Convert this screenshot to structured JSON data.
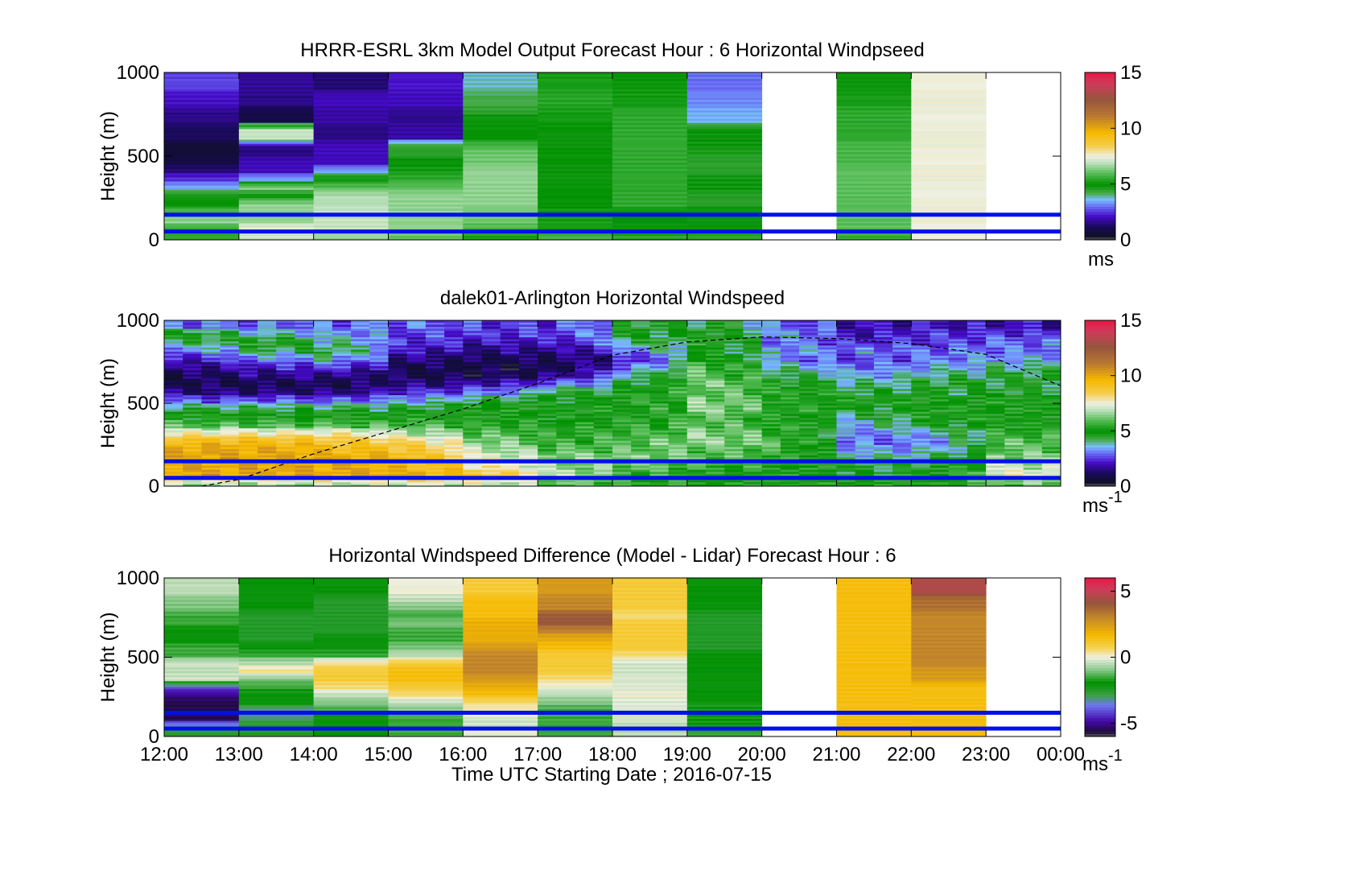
{
  "figure": {
    "xlabel": "Time UTC  Starting Date ; 2016-07-15",
    "xticks": [
      "12:00",
      "13:00",
      "14:00",
      "15:00",
      "16:00",
      "17:00",
      "18:00",
      "19:00",
      "20:00",
      "21:00",
      "22:00",
      "23:00",
      "00:00"
    ],
    "ylabel": "Height (m)",
    "yticks": [
      "0",
      "500",
      "1000"
    ]
  },
  "panels": [
    {
      "id": "model",
      "title": "HRRR-ESRL 3km Model Output   Forecast Hour : 6 Horizontal Windpseed",
      "colorbar": {
        "ticks": [
          "0",
          "5",
          "10",
          "15"
        ],
        "unit": "ms",
        "unit_sup": ""
      }
    },
    {
      "id": "lidar",
      "title": "dalek01-Arlington  Horizontal Windspeed",
      "colorbar": {
        "ticks": [
          "0",
          "5",
          "10",
          "15"
        ],
        "unit": "ms",
        "unit_sup": "-1"
      }
    },
    {
      "id": "difference",
      "title": "Horizontal Windspeed Difference (Model - Lidar) Forecast Hour : 6",
      "colorbar": {
        "ticks": [
          "-5",
          "0",
          "5"
        ],
        "unit": "ms",
        "unit_sup": "-1"
      }
    }
  ],
  "chart_data": [
    {
      "type": "heatmap",
      "title": "HRRR-ESRL 3km Model Output   Forecast Hour : 6 Horizontal Windpseed",
      "xlabel": "",
      "ylabel": "Height (m)",
      "x_range": [
        "12:00",
        "00:00"
      ],
      "ylim": [
        0,
        1000
      ],
      "clim": [
        0,
        15
      ],
      "x_columns": [
        "12:00",
        "13:00",
        "14:00",
        "15:00",
        "16:00",
        "17:00",
        "18:00",
        "19:00",
        "20:00",
        "21:00",
        "22:00",
        "23:00"
      ],
      "heights_m": [
        25,
        75,
        125,
        175,
        225,
        275,
        325,
        375,
        425,
        475,
        525,
        575,
        625,
        675,
        725,
        775,
        825,
        875,
        925,
        975
      ],
      "values": [
        [
          5.5,
          7.0,
          6.5,
          6.0,
          5.2,
          5.8,
          5.5,
          5.5,
          null,
          5.5,
          7.5,
          null
        ],
        [
          5.5,
          7.5,
          7.0,
          6.5,
          5.8,
          5.2,
          5.0,
          5.0,
          null,
          6.0,
          7.5,
          null
        ],
        [
          6.5,
          6.5,
          7.0,
          6.5,
          6.2,
          5.2,
          5.0,
          5.0,
          null,
          6.0,
          7.5,
          null
        ],
        [
          6.0,
          6.5,
          7.0,
          6.5,
          6.2,
          5.2,
          5.0,
          5.0,
          null,
          6.0,
          7.5,
          null
        ],
        [
          5.0,
          6.5,
          6.8,
          6.5,
          6.5,
          5.0,
          5.5,
          4.5,
          null,
          6.0,
          7.5,
          null
        ],
        [
          4.8,
          5.0,
          6.8,
          6.5,
          6.5,
          5.0,
          5.5,
          4.5,
          null,
          6.0,
          7.5,
          null
        ],
        [
          3.5,
          6.5,
          6.0,
          6.0,
          6.5,
          5.0,
          5.5,
          4.8,
          null,
          6.0,
          7.5,
          null
        ],
        [
          2.5,
          3.5,
          5.0,
          5.5,
          6.5,
          5.0,
          5.5,
          4.8,
          null,
          6.0,
          7.5,
          null
        ],
        [
          1.5,
          2.0,
          3.5,
          5.2,
          6.5,
          5.0,
          5.5,
          4.5,
          null,
          6.0,
          7.5,
          null
        ],
        [
          0.8,
          2.0,
          2.0,
          5.0,
          6.2,
          5.0,
          5.5,
          4.5,
          null,
          5.8,
          7.5,
          null
        ],
        [
          0.6,
          1.5,
          2.0,
          4.5,
          6.2,
          5.0,
          5.5,
          4.6,
          null,
          5.8,
          7.5,
          null
        ],
        [
          0.6,
          1.5,
          2.0,
          4.5,
          5.8,
          5.0,
          5.5,
          4.8,
          null,
          5.8,
          7.5,
          null
        ],
        [
          1.2,
          7.0,
          1.5,
          1.8,
          5.0,
          5.0,
          5.5,
          4.8,
          null,
          5.5,
          7.5,
          null
        ],
        [
          1.2,
          7.0,
          1.5,
          1.8,
          5.0,
          5.0,
          5.5,
          4.8,
          null,
          5.5,
          7.5,
          null
        ],
        [
          1.6,
          0.9,
          1.8,
          1.6,
          5.0,
          5.2,
          5.5,
          3.5,
          null,
          5.5,
          7.5,
          null
        ],
        [
          1.6,
          0.9,
          1.8,
          1.6,
          4.5,
          5.2,
          5.5,
          3.5,
          null,
          5.5,
          7.5,
          null
        ],
        [
          2.1,
          1.6,
          2.0,
          2.0,
          4.2,
          5.4,
          5.2,
          3.2,
          null,
          5.2,
          7.5,
          null
        ],
        [
          2.1,
          1.6,
          2.0,
          2.0,
          4.2,
          5.4,
          5.2,
          3.2,
          null,
          5.2,
          7.5,
          null
        ],
        [
          2.6,
          1.7,
          1.4,
          2.2,
          3.8,
          5.2,
          5.0,
          3.0,
          null,
          5.0,
          7.5,
          null
        ],
        [
          2.6,
          1.7,
          1.4,
          2.2,
          3.8,
          5.2,
          5.0,
          3.0,
          null,
          5.0,
          7.5,
          null
        ]
      ],
      "reference_lines_m": [
        50,
        150
      ]
    },
    {
      "type": "heatmap",
      "title": "dalek01-Arlington  Horizontal Windspeed",
      "xlabel": "",
      "ylabel": "Height (m)",
      "x_range": [
        "12:00",
        "00:00"
      ],
      "ylim": [
        0,
        1000
      ],
      "clim": [
        0,
        15
      ],
      "columns_per_hour": 2,
      "heights_m": [
        25,
        75,
        125,
        175,
        225,
        275,
        325,
        375,
        425,
        475,
        525,
        575,
        625,
        675,
        725,
        775,
        825,
        875,
        925,
        975
      ],
      "hourly_profiles": [
        [
          6.5,
          10.0,
          10.0,
          10.0,
          10.0,
          9.5,
          8.0,
          6.0,
          5.0,
          4.5,
          3.0,
          1.5,
          1.0,
          1.0,
          1.5,
          2.0,
          3.0,
          4.0,
          5.0,
          3.0
        ],
        [
          6.5,
          10.0,
          10.0,
          10.0,
          10.0,
          9.5,
          8.0,
          6.0,
          5.0,
          4.5,
          3.0,
          1.5,
          1.0,
          1.5,
          2.0,
          3.0,
          4.0,
          5.0,
          4.0,
          3.0
        ],
        [
          6.5,
          10.0,
          10.0,
          10.0,
          9.5,
          9.0,
          8.0,
          6.0,
          5.0,
          4.5,
          3.0,
          1.5,
          1.0,
          1.5,
          2.5,
          3.5,
          4.5,
          4.0,
          3.5,
          3.0
        ],
        [
          7.0,
          10.0,
          9.5,
          9.5,
          9.0,
          8.5,
          7.0,
          6.0,
          5.0,
          4.5,
          3.5,
          2.5,
          1.5,
          1.0,
          1.0,
          1.5,
          2.0,
          2.5,
          2.5,
          3.0
        ],
        [
          7.0,
          9.0,
          8.0,
          7.5,
          7.0,
          6.5,
          6.0,
          5.5,
          5.0,
          5.0,
          4.5,
          3.0,
          2.0,
          1.0,
          0.8,
          1.0,
          1.5,
          2.0,
          2.5,
          2.5
        ],
        [
          6.0,
          7.0,
          6.5,
          6.5,
          6.0,
          5.5,
          5.5,
          5.0,
          5.0,
          5.0,
          4.8,
          4.5,
          3.0,
          1.5,
          1.0,
          1.2,
          1.5,
          2.0,
          2.5,
          2.5
        ],
        [
          5.5,
          5.5,
          6.0,
          6.5,
          6.0,
          6.0,
          5.5,
          5.5,
          5.0,
          5.0,
          5.0,
          5.0,
          4.5,
          4.0,
          3.0,
          2.0,
          3.0,
          4.0,
          4.5,
          4.5
        ],
        [
          5.0,
          5.0,
          5.5,
          6.0,
          6.0,
          6.5,
          6.5,
          6.0,
          6.0,
          6.5,
          6.5,
          6.0,
          6.5,
          6.0,
          6.0,
          5.5,
          5.0,
          5.0,
          5.0,
          4.5
        ],
        [
          5.0,
          5.0,
          5.0,
          5.5,
          5.5,
          6.0,
          5.5,
          5.5,
          5.0,
          5.5,
          5.0,
          5.5,
          5.0,
          4.5,
          4.0,
          3.0,
          3.5,
          3.0,
          3.5,
          3.0
        ],
        [
          5.0,
          4.5,
          4.5,
          4.0,
          3.5,
          3.0,
          3.0,
          3.5,
          4.0,
          4.5,
          5.0,
          4.5,
          4.0,
          3.5,
          3.0,
          2.5,
          3.0,
          2.5,
          2.0,
          2.0
        ],
        [
          5.0,
          4.8,
          4.5,
          4.0,
          3.5,
          3.0,
          3.5,
          4.5,
          5.0,
          5.0,
          5.0,
          4.5,
          4.5,
          4.0,
          3.5,
          3.0,
          3.0,
          2.5,
          2.5,
          2.0
        ],
        [
          6.0,
          7.5,
          7.0,
          6.5,
          6.0,
          6.0,
          5.5,
          5.0,
          5.0,
          5.0,
          5.0,
          4.5,
          4.5,
          4.5,
          4.0,
          3.5,
          3.0,
          3.0,
          2.5,
          2.0
        ]
      ],
      "reference_lines_m": [
        50,
        150
      ],
      "overlay": {
        "type": "line",
        "style": "dashed",
        "x_hours_after_start": [
          0.5,
          1,
          2,
          3,
          4,
          5,
          6,
          7,
          8,
          9,
          10,
          11,
          12
        ],
        "y_m": [
          0,
          40,
          195,
          330,
          465,
          620,
          790,
          870,
          900,
          890,
          860,
          795,
          605
        ]
      }
    },
    {
      "type": "heatmap",
      "title": "Horizontal Windspeed Difference (Model - Lidar) Forecast Hour : 6",
      "xlabel": "Time UTC  Starting Date ; 2016-07-15",
      "ylabel": "Height (m)",
      "x_range": [
        "12:00",
        "00:00"
      ],
      "ylim": [
        0,
        1000
      ],
      "clim": [
        -6,
        6
      ],
      "x_columns": [
        "12:00",
        "13:00",
        "14:00",
        "15:00",
        "16:00",
        "17:00",
        "18:00",
        "19:00",
        "20:00",
        "21:00",
        "22:00",
        "23:00"
      ],
      "heights_m": [
        25,
        75,
        125,
        175,
        225,
        275,
        325,
        375,
        425,
        475,
        525,
        575,
        625,
        675,
        725,
        775,
        825,
        875,
        925,
        975
      ],
      "values": [
        [
          -2.5,
          -2.5,
          -2.0,
          -1.5,
          0.0,
          -1.5,
          -0.5,
          -1.5,
          null,
          1.5,
          1.5,
          null
        ],
        [
          -3.0,
          -2.5,
          -2.0,
          -1.5,
          -0.3,
          -1.5,
          -0.5,
          -1.8,
          null,
          1.5,
          1.5,
          null
        ],
        [
          -5.5,
          -3.0,
          -2.0,
          -1.5,
          -0.3,
          -1.5,
          -0.3,
          -1.8,
          null,
          1.5,
          1.5,
          null
        ],
        [
          -5.5,
          -3.5,
          -1.5,
          -1.0,
          0.2,
          -1.5,
          -0.2,
          -1.8,
          null,
          1.5,
          1.5,
          null
        ],
        [
          -5.5,
          -2.0,
          -1.0,
          -0.5,
          0.5,
          -1.0,
          -0.2,
          -1.8,
          null,
          1.5,
          1.5,
          null
        ],
        [
          -5.0,
          -2.0,
          -0.5,
          0.5,
          1.5,
          -0.5,
          0.0,
          -2.0,
          null,
          1.5,
          1.5,
          null
        ],
        [
          -4.0,
          -1.5,
          0.5,
          1.0,
          2.0,
          0.0,
          -0.2,
          -2.0,
          null,
          1.5,
          1.5,
          null
        ],
        [
          -0.3,
          -1.0,
          1.0,
          1.5,
          2.5,
          0.5,
          -0.2,
          -2.0,
          null,
          1.5,
          2.5,
          null
        ],
        [
          -0.5,
          0.5,
          1.0,
          1.5,
          3.0,
          1.0,
          -0.3,
          -2.0,
          null,
          1.5,
          2.5,
          null
        ],
        [
          -0.3,
          -0.5,
          0.5,
          1.0,
          3.0,
          1.0,
          -0.3,
          -2.0,
          null,
          1.5,
          3.0,
          null
        ],
        [
          -1.5,
          -1.5,
          -1.5,
          -0.5,
          3.0,
          1.0,
          0.5,
          -2.0,
          null,
          1.5,
          3.0,
          null
        ],
        [
          -1.5,
          -2.0,
          -2.0,
          -1.0,
          2.5,
          1.5,
          1.0,
          -2.5,
          null,
          1.5,
          3.0,
          null
        ],
        [
          -2.0,
          -2.5,
          -2.0,
          -1.5,
          2.0,
          2.0,
          1.0,
          -2.5,
          null,
          1.5,
          3.0,
          null
        ],
        [
          -2.0,
          -2.5,
          -2.5,
          -1.5,
          2.0,
          3.0,
          1.0,
          -2.5,
          null,
          1.5,
          3.0,
          null
        ],
        [
          -1.5,
          -2.5,
          -2.5,
          -1.0,
          2.0,
          4.0,
          1.0,
          -2.5,
          null,
          1.5,
          3.0,
          null
        ],
        [
          -1.5,
          -2.5,
          -2.5,
          -1.5,
          1.5,
          4.0,
          0.5,
          -2.5,
          null,
          1.5,
          3.0,
          null
        ],
        [
          -1.0,
          -2.0,
          -2.5,
          -1.0,
          1.5,
          3.0,
          1.0,
          -2.0,
          null,
          1.5,
          3.5,
          null
        ],
        [
          -1.0,
          -2.0,
          -2.5,
          -0.5,
          1.5,
          3.0,
          1.0,
          -2.0,
          null,
          1.5,
          3.5,
          null
        ],
        [
          -0.5,
          -2.0,
          -2.0,
          0.0,
          1.0,
          2.5,
          1.0,
          -2.0,
          null,
          1.5,
          4.5,
          null
        ],
        [
          -0.5,
          -2.0,
          -2.0,
          0.0,
          1.0,
          2.5,
          1.0,
          -2.0,
          null,
          1.5,
          4.5,
          null
        ]
      ],
      "reference_lines_m": [
        50,
        150
      ]
    }
  ]
}
